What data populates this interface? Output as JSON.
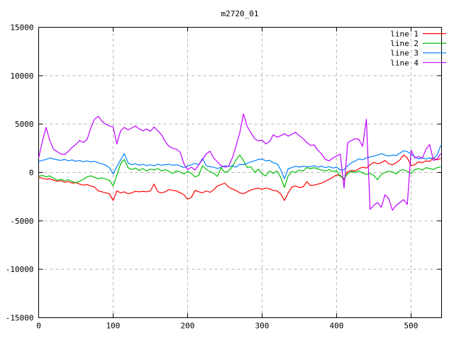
{
  "title": "m2720_01",
  "legend": {
    "position": "top-right",
    "entries": [
      {
        "label": "line 1",
        "color": "#ff0000"
      },
      {
        "label": "line 2",
        "color": "#00c000"
      },
      {
        "label": "line 3",
        "color": "#0080ff"
      },
      {
        "label": "line 4",
        "color": "#c000ff"
      }
    ]
  },
  "axes": {
    "x": {
      "ticks": [
        0,
        100,
        200,
        300,
        400,
        500
      ],
      "min": 0,
      "max": 541
    },
    "y": {
      "ticks": [
        -15000,
        -10000,
        -5000,
        0,
        5000,
        10000,
        15000
      ],
      "min": -15000,
      "max": 15000
    }
  },
  "style": {
    "grid_color": "#b4b4b4",
    "border_color": "#000000",
    "background": "#ffffff"
  },
  "chart_data": {
    "type": "line",
    "title": "m2720_01",
    "xlabel": "",
    "ylabel": "",
    "xlim": [
      0,
      541
    ],
    "ylim": [
      -15000,
      15000
    ],
    "grid": true,
    "legend_position": "top-right inside",
    "x_start": 0,
    "x_step": 5,
    "series": [
      {
        "name": "line 1",
        "color": "#ff0000",
        "values": [
          -500,
          -600,
          -700,
          -650,
          -800,
          -900,
          -850,
          -1000,
          -950,
          -1100,
          -1050,
          -1200,
          -1300,
          -1250,
          -1400,
          -1500,
          -1900,
          -2000,
          -2100,
          -2200,
          -2900,
          -1900,
          -2100,
          -2000,
          -2200,
          -2100,
          -1950,
          -2000,
          -1950,
          -2000,
          -1900,
          -1200,
          -2000,
          -2100,
          -2000,
          -1750,
          -1850,
          -1900,
          -2100,
          -2300,
          -2750,
          -2600,
          -1850,
          -2000,
          -2100,
          -1900,
          -2050,
          -1800,
          -1400,
          -1250,
          -1100,
          -1500,
          -1700,
          -1850,
          -2100,
          -2200,
          -2000,
          -1800,
          -1700,
          -1600,
          -1750,
          -1600,
          -1700,
          -1850,
          -1900,
          -2200,
          -2900,
          -2100,
          -1500,
          -1400,
          -1550,
          -1500,
          -950,
          -1350,
          -1300,
          -1200,
          -1100,
          -900,
          -700,
          -500,
          -250,
          -300,
          -750,
          100,
          200,
          150,
          400,
          550,
          450,
          800,
          1050,
          900,
          1000,
          1250,
          900,
          800,
          1000,
          1300,
          1800,
          1500,
          700,
          800,
          1100,
          1000,
          1200,
          1150,
          1500,
          1300,
          1450
        ]
      },
      {
        "name": "line 2",
        "color": "#00c000",
        "values": [
          -400,
          -300,
          -450,
          -350,
          -600,
          -800,
          -700,
          -850,
          -750,
          -950,
          -1050,
          -900,
          -700,
          -450,
          -350,
          -500,
          -650,
          -550,
          -700,
          -800,
          -1400,
          -300,
          900,
          1350,
          500,
          300,
          450,
          200,
          400,
          150,
          350,
          250,
          400,
          150,
          300,
          100,
          -100,
          150,
          50,
          -150,
          100,
          -100,
          -450,
          -300,
          700,
          300,
          100,
          -100,
          -400,
          500,
          0,
          150,
          600,
          1300,
          1800,
          1250,
          500,
          600,
          0,
          350,
          -150,
          -350,
          150,
          -100,
          150,
          -500,
          -1550,
          -350,
          100,
          0,
          250,
          150,
          500,
          400,
          500,
          350,
          250,
          150,
          300,
          100,
          200,
          -400,
          -650,
          -100,
          100,
          0,
          150,
          -50,
          -200,
          -100,
          -300,
          -750,
          -200,
          0,
          150,
          50,
          -150,
          200,
          300,
          100,
          -100,
          300,
          400,
          250,
          500,
          400,
          300,
          500,
          600
        ]
      },
      {
        "name": "line 3",
        "color": "#0080ff",
        "values": [
          1150,
          1250,
          1350,
          1500,
          1400,
          1300,
          1250,
          1350,
          1200,
          1300,
          1150,
          1250,
          1100,
          1200,
          1100,
          1150,
          1000,
          900,
          750,
          500,
          -150,
          600,
          1300,
          1950,
          1000,
          800,
          900,
          750,
          850,
          700,
          800,
          700,
          850,
          750,
          800,
          850,
          750,
          800,
          700,
          500,
          650,
          800,
          950,
          800,
          1450,
          700,
          600,
          550,
          400,
          550,
          700,
          600,
          700,
          550,
          850,
          800,
          950,
          1100,
          1200,
          1350,
          1400,
          1200,
          1250,
          1000,
          900,
          300,
          -650,
          400,
          500,
          650,
          550,
          650,
          600,
          600,
          700,
          550,
          650,
          500,
          600,
          450,
          550,
          250,
          300,
          700,
          1000,
          1200,
          1400,
          1300,
          1500,
          1600,
          1700,
          1800,
          1950,
          1800,
          1700,
          1800,
          1750,
          2000,
          2250,
          2150,
          1900,
          1600,
          1400,
          1500,
          1400,
          1500,
          1450,
          1800,
          2800
        ]
      },
      {
        "name": "line 4",
        "color": "#c000ff",
        "values": [
          1500,
          3200,
          4650,
          3300,
          2400,
          2150,
          1900,
          1850,
          2200,
          2600,
          2900,
          3300,
          3100,
          3400,
          4600,
          5500,
          5800,
          5300,
          5000,
          4800,
          4700,
          2950,
          4300,
          4650,
          4400,
          4600,
          4800,
          4500,
          4300,
          4500,
          4250,
          4700,
          4300,
          3900,
          3200,
          2700,
          2500,
          2400,
          2100,
          900,
          300,
          550,
          250,
          800,
          1350,
          1900,
          2200,
          1500,
          1100,
          700,
          550,
          650,
          1500,
          2700,
          4100,
          6050,
          4750,
          4100,
          3500,
          3250,
          3350,
          2950,
          3200,
          3900,
          3650,
          3800,
          4000,
          3750,
          3950,
          4150,
          3800,
          3500,
          3100,
          2800,
          2850,
          2300,
          1900,
          1350,
          1200,
          1500,
          1700,
          1900,
          -1600,
          3100,
          3300,
          3500,
          3400,
          2700,
          5500,
          -3800,
          -3400,
          -3100,
          -3600,
          -2300,
          -2700,
          -3900,
          -3400,
          -3100,
          -2800,
          -3300,
          2300,
          1500,
          1650,
          1450,
          2400,
          2900,
          1250,
          1400,
          1950
        ]
      }
    ]
  }
}
